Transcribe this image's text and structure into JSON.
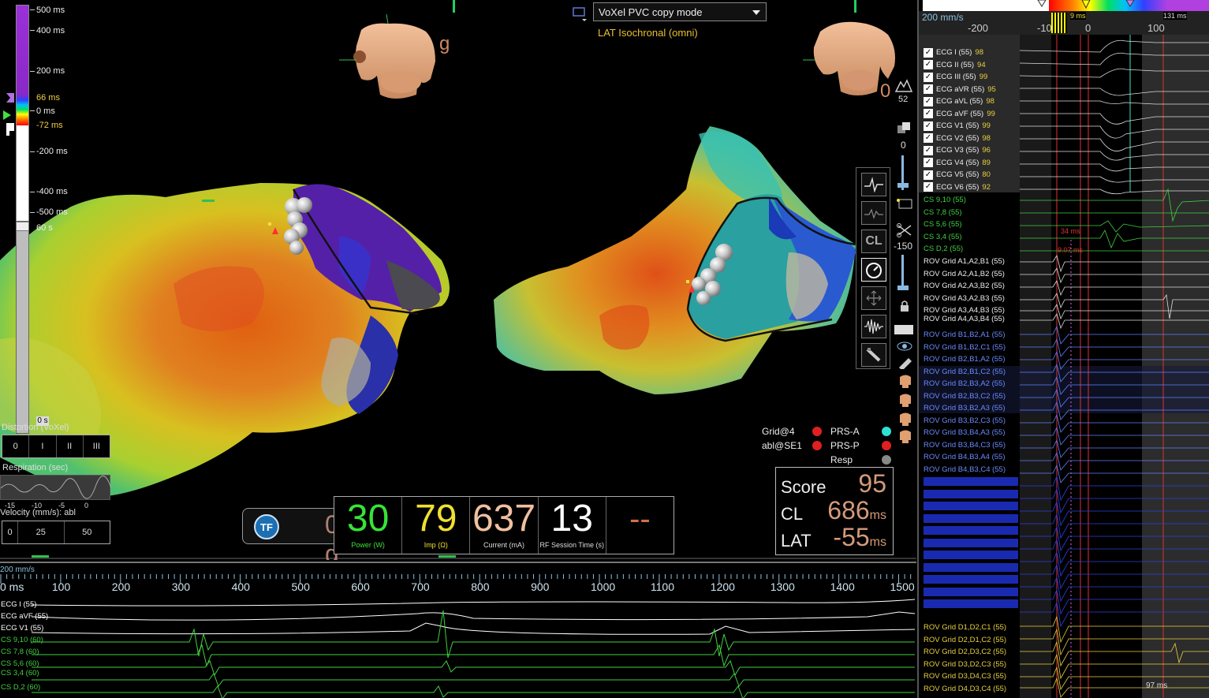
{
  "colors": {
    "accent_green": "#37e337",
    "accent_yellow": "#f0e040",
    "lat_text": "#e8c030",
    "score_value": "#d49a7a",
    "ecg_white": "#ffffff",
    "cs_green": "#40d040",
    "rov_blue": "#3a5cff",
    "rov_yellow": "#e8d040"
  },
  "scale": {
    "labels": {
      "s500": "500 ms",
      "s400": "400 ms",
      "s200": "200 ms",
      "s66": "66 ms",
      "s0": "0 ms",
      "sm72": "-72 ms",
      "sm200": "-200 ms",
      "sm400": "-400 ms",
      "sm500": "-500 ms",
      "s60": "60 s"
    },
    "seg_label": "0 s"
  },
  "left_panels": {
    "distortion_label": "Distortion (VoXel)",
    "distortion_segments": [
      "0",
      "I",
      "II",
      "III"
    ],
    "respiration_label": "Respiration (sec)",
    "resp_ticks": [
      "-15",
      "-10",
      "-5",
      "0"
    ],
    "velocity_label": "Velocity (mm/s): abl",
    "velocity_segments": [
      "0",
      "25",
      "50"
    ]
  },
  "map": {
    "mode_select": "VoXel PVC copy mode",
    "lat_mode": "LAT Isochronal (omni)",
    "torso_left_letter": "g",
    "torso_right_letter": "0",
    "view_number": "52",
    "slider_top_value": "0",
    "slider_bottom_value": "-150",
    "toolbar_cl": "CL"
  },
  "legend": {
    "grid": "Grid@4",
    "abl": "abl@SE1",
    "prs_a": "PRS-A",
    "prs_p": "PRS-P",
    "resp": "Resp"
  },
  "score": {
    "score_label": "Score",
    "score_value": "95",
    "cl_label": "CL",
    "cl_value": "686",
    "cl_unit": "ms",
    "lat_label": "LAT",
    "lat_value": "-55",
    "lat_unit": "ms"
  },
  "ablation": {
    "tf_label": "TF",
    "force_value": "0 g",
    "power_value": "30",
    "power_label": "Power (W)",
    "imp_value": "79",
    "imp_label": "Imp (Ω)",
    "current_value": "637",
    "current_label": "Current (mA)",
    "time_value": "13",
    "time_label": "RF Session Time (s)",
    "extra_value": "--"
  },
  "right_panel": {
    "speed": "200 mm/s",
    "ms_marker_1": "9 ms",
    "ms_marker_2": "131 ms",
    "axis_labels": [
      "-200",
      "-100",
      "0",
      "100"
    ],
    "cs_annotations": [
      "34 ms",
      "9.07 ms"
    ],
    "footer_ms": "97 ms",
    "ecg_channels": [
      {
        "name": "ECG I (55)",
        "val": "98"
      },
      {
        "name": "ECG II (55)",
        "val": "94"
      },
      {
        "name": "ECG III (55)",
        "val": "99"
      },
      {
        "name": "ECG aVR (55)",
        "val": "95"
      },
      {
        "name": "ECG aVL (55)",
        "val": "98"
      },
      {
        "name": "ECG aVF (55)",
        "val": "99"
      },
      {
        "name": "ECG V1 (55)",
        "val": "99"
      },
      {
        "name": "ECG V2 (55)",
        "val": "98"
      },
      {
        "name": "ECG V3 (55)",
        "val": "96"
      },
      {
        "name": "ECG V4 (55)",
        "val": "89"
      },
      {
        "name": "ECG V5 (55)",
        "val": "80"
      },
      {
        "name": "ECG V6 (55)",
        "val": "92"
      }
    ],
    "cs_channels": [
      "CS 9,10 (55)",
      "CS 7,8 (55)",
      "CS 5,6 (55)",
      "CS 3,4 (55)",
      "CS D,2 (55)"
    ],
    "rov_a_channels": [
      "ROV Grid  A1,A2,B1 (55)",
      "ROV Grid  A2,A1,B2 (55)",
      "ROV Grid  A2,A3,B2 (55)",
      "ROV Grid  A3,A2,B3 (55)",
      "ROV Grid  A3,A4,B3 (55)",
      "ROV Grid  A4,A3,B4 (55)"
    ],
    "rov_b_channels": [
      "ROV Grid  B1,B2,A1 (55)",
      "ROV Grid  B1,B2,C1 (55)",
      "ROV Grid  B2,B1,A2 (55)",
      "ROV Grid  B2,B1,C2 (55)",
      "ROV Grid  B2,B3,A2 (55)",
      "ROV Grid  B2,B3,C2 (55)",
      "ROV Grid  B3,B2,A3 (55)",
      "ROV Grid  B3,B2,C3 (55)",
      "ROV Grid  B3,B4,A3 (55)",
      "ROV Grid  B3,B4,C3 (55)",
      "ROV Grid  B4,B3,A4 (55)",
      "ROV Grid  B4,B3,C4 (55)"
    ],
    "rov_d_channels": [
      "ROV Grid  D1,D2,C1 (55)",
      "ROV Grid  D2,D1,C2 (55)",
      "ROV Grid  D2,D3,C2 (55)",
      "ROV Grid  D3,D2,C3 (55)",
      "ROV Grid  D3,D4,C3 (55)",
      "ROV Grid  D4,D3,C4 (55)"
    ]
  },
  "bottom": {
    "speed": "200 mm/s",
    "axis_labels": [
      "0 ms",
      "100",
      "200",
      "300",
      "400",
      "500",
      "600",
      "700",
      "800",
      "900",
      "1000",
      "1100",
      "1200",
      "1300",
      "1400",
      "1500"
    ],
    "channels": [
      "ECG I (55)",
      "ECG aVF (55)",
      "ECG V1 (55)",
      "CS 9,10 (60)",
      "CS 7,8 (60)",
      "CS 5,6 (60)",
      "CS 3,4 (60)",
      "CS D,2 (60)"
    ]
  }
}
